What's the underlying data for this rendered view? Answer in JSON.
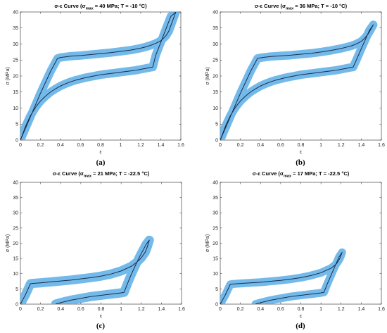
{
  "chart_data": [
    {
      "type": "line",
      "panel_label": "(a)",
      "title": {
        "prefix": "σ-ε Curve (σ",
        "sub": "max",
        "suffix": " =  40 MPa; T = -10 °C)"
      },
      "xlabel": "ε",
      "ylabel": "σ (MPa)",
      "xlim": [
        0,
        1.6
      ],
      "ylim": [
        0,
        40
      ],
      "xticks": [
        "0",
        "0.2",
        "0.4",
        "0.6",
        "0.8",
        "1",
        "1.2",
        "1.4",
        "1.6"
      ],
      "yticks": [
        "0",
        "5",
        "10",
        "15",
        "20",
        "25",
        "30",
        "35",
        "40"
      ],
      "grid": false,
      "series": [
        {
          "role": "mean",
          "color": "#1a2a4a",
          "x": [
            0,
            0.05,
            0.1,
            0.15,
            0.2,
            0.25,
            0.3,
            0.35,
            0.4,
            0.45,
            0.5,
            0.55,
            0.6,
            0.65,
            0.7,
            0.75,
            0.8,
            0.85,
            0.9,
            0.95,
            1.0,
            1.05,
            1.1,
            1.15,
            1.2,
            1.25,
            1.3,
            1.32,
            1.35,
            1.4,
            1.45,
            1.5,
            1.55,
            1.48,
            1.45,
            1.4,
            1.35,
            1.3,
            1.25,
            1.2,
            1.1,
            1.0,
            0.9,
            0.8,
            0.7,
            0.6,
            0.5,
            0.45,
            0.4,
            0.37,
            0.3,
            0.2,
            0.1,
            0
          ],
          "y": [
            0,
            4.2,
            7.6,
            10.2,
            12.2,
            13.7,
            15,
            16,
            16.9,
            17.6,
            18.2,
            18.7,
            19.1,
            19.5,
            19.8,
            20.1,
            20.4,
            20.6,
            20.8,
            21,
            21.2,
            21.4,
            21.6,
            21.8,
            22.1,
            22.4,
            22.7,
            22.8,
            26.5,
            30.5,
            34.6,
            38.6,
            40,
            34,
            32.5,
            31,
            30.2,
            29.6,
            29.1,
            28.7,
            28.1,
            27.7,
            27.3,
            27,
            26.7,
            26.4,
            26.2,
            26,
            25.8,
            25.5,
            21.4,
            14.6,
            7.3,
            0
          ]
        },
        {
          "role": "band-width",
          "color": "#5aaee6",
          "value": 1.3
        }
      ]
    },
    {
      "type": "line",
      "panel_label": "(b)",
      "title": {
        "prefix": "σ-ε Curve (σ",
        "sub": "max",
        "suffix": " =  36 MPa; T = -10 °C)"
      },
      "xlabel": "ε",
      "ylabel": "σ (MPa)",
      "xlim": [
        0,
        1.6
      ],
      "ylim": [
        0,
        40
      ],
      "xticks": [
        "0",
        "0.2",
        "0.4",
        "0.6",
        "0.8",
        "1",
        "1.2",
        "1.4",
        "1.6"
      ],
      "yticks": [
        "0",
        "5",
        "10",
        "15",
        "20",
        "25",
        "30",
        "35",
        "40"
      ],
      "grid": false,
      "series": [
        {
          "role": "mean",
          "color": "#1a2a4a",
          "x": [
            0,
            0.05,
            0.1,
            0.15,
            0.2,
            0.25,
            0.3,
            0.35,
            0.4,
            0.45,
            0.5,
            0.55,
            0.6,
            0.65,
            0.7,
            0.75,
            0.8,
            0.85,
            0.9,
            0.95,
            1.0,
            1.05,
            1.1,
            1.15,
            1.2,
            1.25,
            1.3,
            1.32,
            1.36,
            1.4,
            1.44,
            1.48,
            1.52,
            1.47,
            1.44,
            1.4,
            1.35,
            1.3,
            1.25,
            1.2,
            1.1,
            1.0,
            0.9,
            0.8,
            0.7,
            0.6,
            0.5,
            0.45,
            0.4,
            0.37,
            0.3,
            0.2,
            0.1,
            0
          ],
          "y": [
            0,
            4.2,
            7.6,
            10.2,
            12.2,
            13.7,
            15,
            16,
            16.9,
            17.6,
            18.2,
            18.7,
            19.1,
            19.5,
            19.8,
            20.1,
            20.4,
            20.6,
            20.8,
            21,
            21.2,
            21.4,
            21.6,
            21.8,
            22.1,
            22.4,
            22.7,
            22.8,
            25.6,
            28.5,
            31.3,
            34.2,
            36,
            33.2,
            32,
            30.8,
            30,
            29.4,
            29,
            28.6,
            28,
            27.5,
            27.1,
            26.8,
            26.5,
            26.3,
            26.1,
            25.9,
            25.7,
            25.5,
            21.4,
            14.6,
            7.3,
            0
          ]
        },
        {
          "role": "band-width",
          "color": "#5aaee6",
          "value": 1.3
        }
      ]
    },
    {
      "type": "line",
      "panel_label": "(c)",
      "title": {
        "prefix": "σ-ε Curve (σ",
        "sub": "max",
        "suffix": " =  21 MPa; T = -22.5 °C)"
      },
      "xlabel": "ε",
      "ylabel": "σ (MPa)",
      "xlim": [
        0,
        1.6
      ],
      "ylim": [
        0,
        40
      ],
      "xticks": [
        "0",
        "0.2",
        "0.4",
        "0.6",
        "0.8",
        "1",
        "1.2",
        "1.4",
        "1.6"
      ],
      "yticks": [
        "0",
        "5",
        "10",
        "15",
        "20",
        "25",
        "30",
        "35",
        "40"
      ],
      "grid": false,
      "series": [
        {
          "role": "mean",
          "color": "#1a2a4a",
          "x": [
            0.35,
            0.4,
            0.45,
            0.5,
            0.55,
            0.6,
            0.65,
            0.7,
            0.75,
            0.8,
            0.85,
            0.9,
            0.95,
            1.0,
            1.03,
            1.06,
            1.1,
            1.15,
            1.2,
            1.25,
            1.28,
            1.26,
            1.24,
            1.2,
            1.15,
            1.1,
            1.0,
            0.9,
            0.8,
            0.7,
            0.6,
            0.5,
            0.4,
            0.3,
            0.2,
            0.12,
            0.1,
            0.05,
            0
          ],
          "y": [
            0,
            0.5,
            0.9,
            1.3,
            1.6,
            1.9,
            2.2,
            2.5,
            2.7,
            2.9,
            3.1,
            3.3,
            3.5,
            3.7,
            3.9,
            6.5,
            9.7,
            13.3,
            16.6,
            19.7,
            21,
            18.8,
            17.1,
            15.2,
            13.6,
            12.4,
            10.9,
            9.9,
            9.2,
            8.7,
            8.3,
            7.9,
            7.6,
            7.3,
            7,
            6.8,
            6.7,
            3.1,
            0
          ]
        },
        {
          "role": "band-width",
          "color": "#5aaee6",
          "value": 1.5
        }
      ]
    },
    {
      "type": "line",
      "panel_label": "(d)",
      "title": {
        "prefix": "σ-ε Curve (σ",
        "sub": "max",
        "suffix": " =  17 MPa; T = -22.5 °C)"
      },
      "xlabel": "ε",
      "ylabel": "σ (MPa)",
      "xlim": [
        0,
        1.6
      ],
      "ylim": [
        0,
        40
      ],
      "xticks": [
        "0",
        "0.2",
        "0.4",
        "0.6",
        "0.8",
        "1",
        "1.2",
        "1.4",
        "1.6"
      ],
      "yticks": [
        "0",
        "5",
        "10",
        "15",
        "20",
        "25",
        "30",
        "35",
        "40"
      ],
      "grid": false,
      "series": [
        {
          "role": "mean",
          "color": "#1a2a4a",
          "x": [
            0.35,
            0.4,
            0.45,
            0.5,
            0.55,
            0.6,
            0.65,
            0.7,
            0.75,
            0.8,
            0.85,
            0.9,
            0.95,
            1.0,
            1.03,
            1.06,
            1.1,
            1.14,
            1.18,
            1.21,
            1.19,
            1.17,
            1.15,
            1.1,
            1.0,
            0.9,
            0.8,
            0.7,
            0.6,
            0.5,
            0.4,
            0.3,
            0.2,
            0.12,
            0.1,
            0.05,
            0
          ],
          "y": [
            0,
            0.5,
            0.9,
            1.3,
            1.6,
            1.9,
            2.2,
            2.5,
            2.7,
            2.9,
            3.1,
            3.3,
            3.5,
            3.7,
            3.9,
            6.4,
            9.5,
            12.5,
            15.5,
            17,
            15.2,
            14,
            13.1,
            11.8,
            10.3,
            9.4,
            8.7,
            8.2,
            7.8,
            7.5,
            7.2,
            7,
            6.8,
            6.6,
            6.5,
            3,
            0
          ]
        },
        {
          "role": "band-width",
          "color": "#5aaee6",
          "value": 1.3
        }
      ]
    }
  ]
}
